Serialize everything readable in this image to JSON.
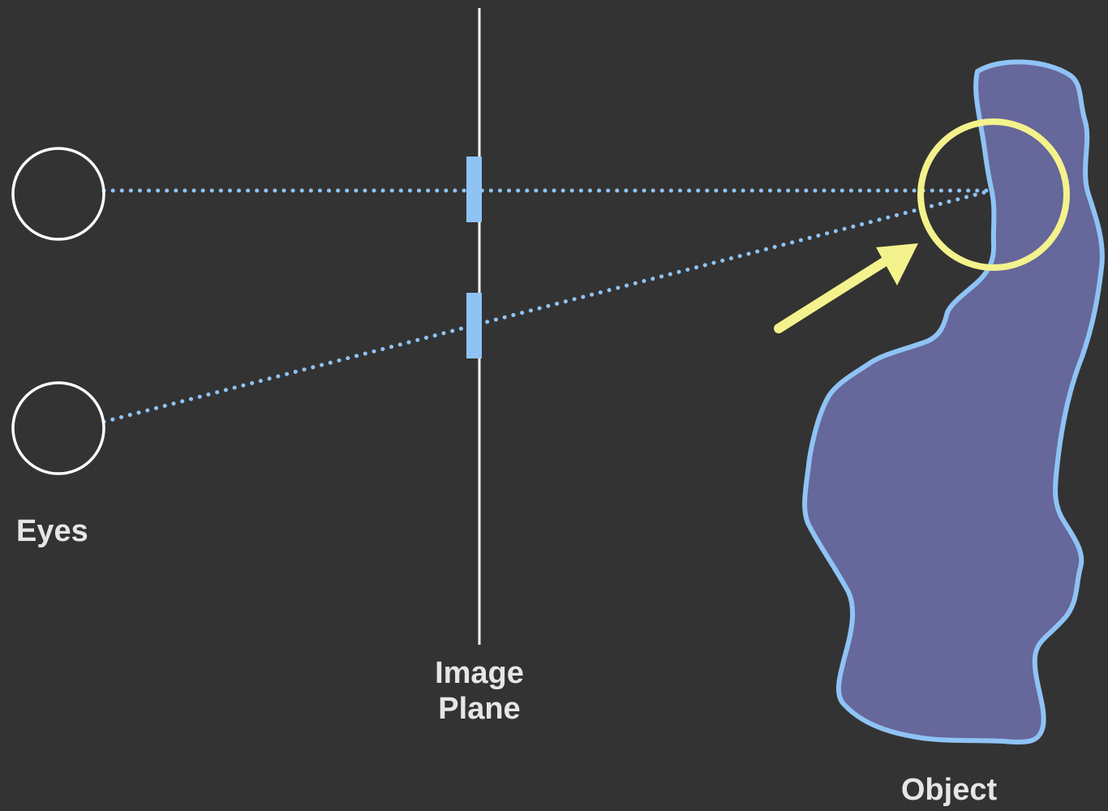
{
  "labels": {
    "eyes": "Eyes",
    "image_plane": [
      "Image",
      "Plane"
    ],
    "object": "Object"
  },
  "colors": {
    "background": "#333333",
    "eye_outline": "#ffffff",
    "image_plane": "#ffffff",
    "projection_ray": "#8fc3f5",
    "pixel_sample": "#8fc3f5",
    "object_fill": "#66679a",
    "object_outline": "#8fc3f5",
    "highlight": "#f4f28c",
    "label_text": "#e6e6e6"
  },
  "icons": {
    "eye": "eye-circle-icon",
    "highlight": "highlight-circle-icon",
    "arrow": "arrow-icon"
  }
}
